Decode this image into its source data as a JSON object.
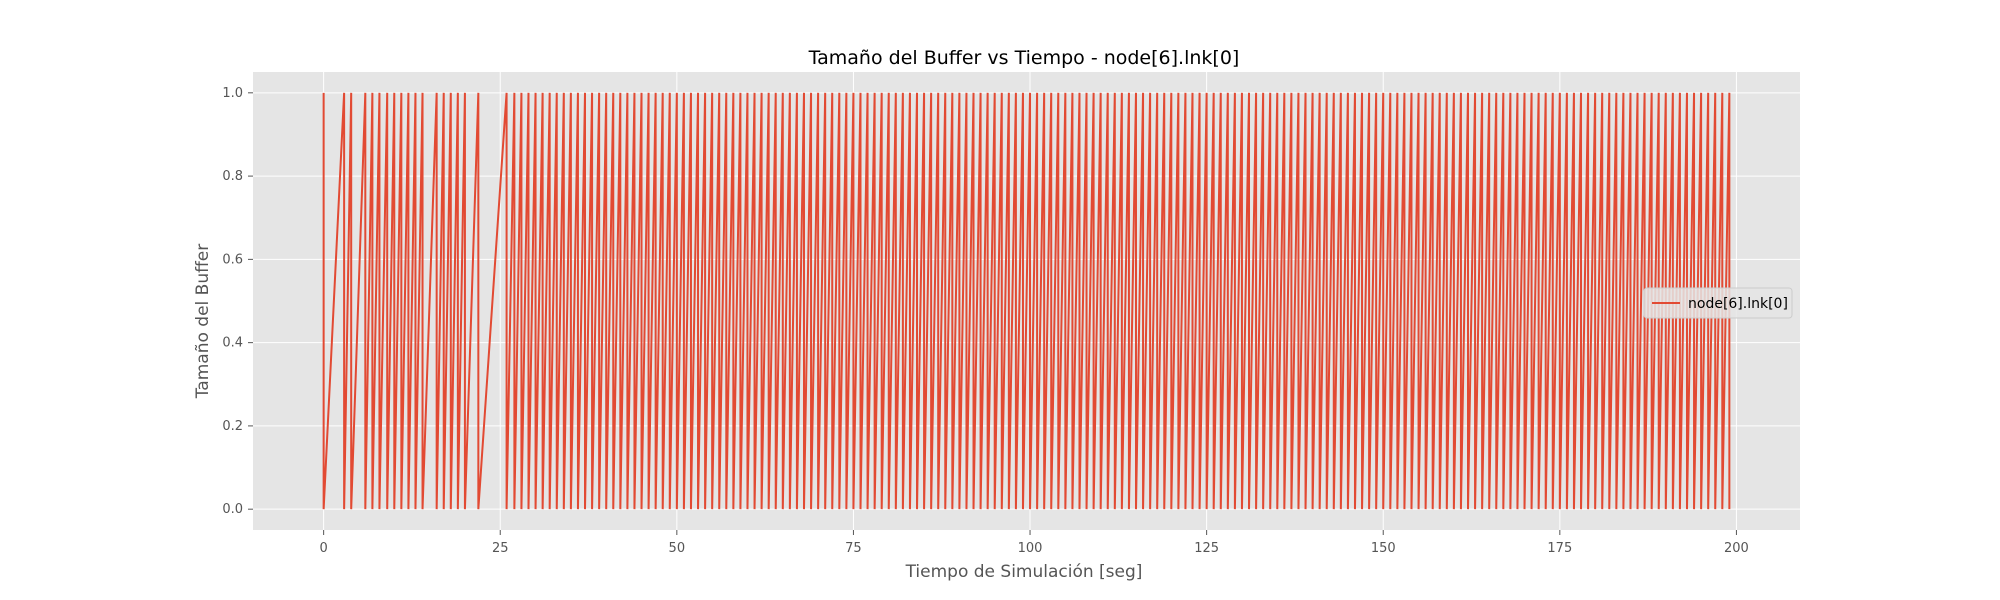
{
  "chart_data": {
    "type": "line",
    "title": "Tamaño del Buffer vs Tiempo - node[6].lnk[0]",
    "xlabel": "Tiempo de Simulación [seg]",
    "ylabel": "Tamaño del Buffer",
    "xlim": [
      -10,
      209
    ],
    "ylim": [
      -0.05,
      1.05
    ],
    "x_ticks": [
      0,
      25,
      50,
      75,
      100,
      125,
      150,
      175,
      200
    ],
    "y_ticks": [
      0.0,
      0.2,
      0.4,
      0.6,
      0.8,
      1.0
    ],
    "x_tick_labels": [
      "0",
      "25",
      "50",
      "75",
      "100",
      "125",
      "150",
      "175",
      "200"
    ],
    "y_tick_labels": [
      "0.0",
      "0.2",
      "0.4",
      "0.6",
      "0.8",
      "1.0"
    ],
    "grid": true,
    "legend_position": "center-right",
    "series": [
      {
        "name": "node[6].lnk[0]",
        "color": "#E24A33",
        "pulse_times": [
          0.0,
          2.9,
          3.9,
          5.9,
          6.9,
          7.9,
          9.0,
          10.0,
          11.0,
          12.0,
          13.0,
          14.0,
          16.0,
          17.0,
          18.0,
          19.0,
          20.0,
          21.9,
          25.9,
          27.0,
          28.0,
          29.0,
          30.0,
          31.0,
          32.0,
          33.0,
          34.0,
          35.0,
          36.0,
          37.0,
          38.0,
          39.0,
          40.0,
          41.0,
          42.0,
          43.0,
          44.0,
          45.0,
          46.0,
          47.0,
          48.0,
          49.0,
          50.0,
          51.0,
          52.0,
          53.0,
          54.0,
          55.0,
          56.0,
          57.0,
          58.0,
          59.0,
          60.0,
          61.0,
          62.0,
          63.0,
          64.0,
          65.0,
          66.0,
          67.0,
          68.0,
          69.0,
          70.0,
          71.0,
          72.0,
          73.0,
          74.0,
          75.0,
          76.0,
          77.0,
          78.0,
          79.0,
          80.0,
          81.0,
          82.0,
          83.0,
          84.0,
          85.0,
          86.0,
          87.0,
          88.0,
          89.0,
          90.0,
          91.0,
          92.0,
          93.0,
          94.0,
          95.0,
          96.0,
          97.0,
          98.0,
          99.0,
          100.0,
          101.0,
          102.0,
          103.0,
          104.0,
          105.0,
          106.0,
          107.0,
          108.0,
          109.0,
          110.0,
          111.0,
          112.0,
          113.0,
          114.0,
          115.0,
          116.0,
          117.0,
          118.0,
          119.0,
          120.0,
          121.0,
          122.0,
          123.0,
          124.0,
          125.0,
          126.0,
          127.0,
          128.0,
          129.0,
          130.0,
          131.0,
          132.0,
          133.0,
          134.0,
          135.0,
          136.0,
          137.0,
          138.0,
          139.0,
          140.0,
          141.0,
          142.0,
          143.0,
          144.0,
          145.0,
          146.0,
          147.0,
          148.0,
          149.0,
          150.0,
          151.0,
          152.0,
          153.0,
          154.0,
          155.0,
          156.0,
          157.0,
          158.0,
          159.0,
          160.0,
          161.0,
          162.0,
          163.0,
          164.0,
          165.0,
          166.0,
          167.0,
          168.0,
          169.0,
          170.0,
          171.0,
          172.0,
          173.0,
          174.0,
          175.0,
          176.0,
          177.0,
          178.0,
          179.0,
          180.0,
          181.0,
          182.0,
          183.0,
          184.0,
          185.0,
          186.0,
          187.0,
          188.0,
          189.0,
          190.0,
          191.0,
          192.0,
          193.0,
          194.0,
          195.0,
          196.0,
          197.0,
          198.0,
          199.0
        ],
        "pulse_value": 1.0,
        "base_value": 0.0,
        "end_time": 199.2
      }
    ]
  }
}
